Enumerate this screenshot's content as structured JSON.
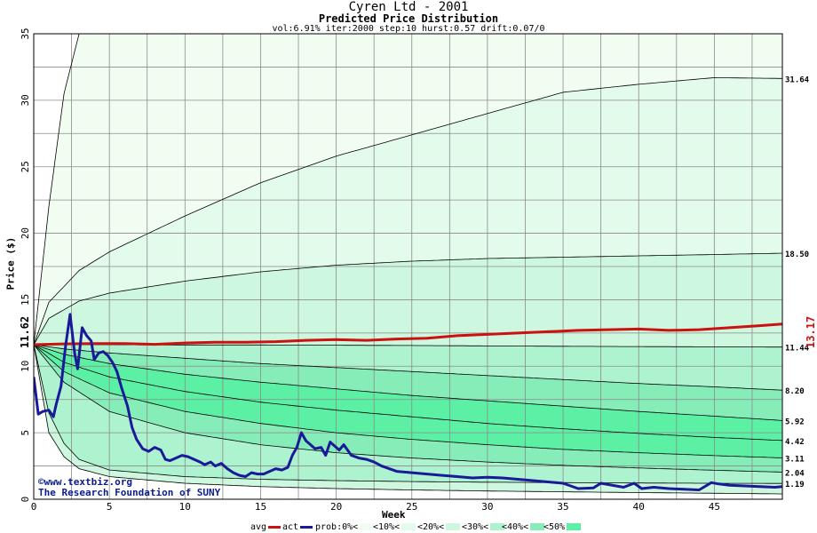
{
  "header": {
    "title": "Cyren Ltd - 2001",
    "subtitle": "Predicted Price Distribution",
    "params": "vol:6.91% iter:2000 step:10 hurst:0.57 drift:0.07/0"
  },
  "credits": {
    "line1": "©www.textbiz.org",
    "line2": "The Research Foundation of SUNY"
  },
  "legend": {
    "avg": "avg",
    "act": "act",
    "prob0": "prob:0%<",
    "p10": "<10%<",
    "p20": "<20%<",
    "p30": "<30%<",
    "p40": "<40%<",
    "p50": "<50%"
  },
  "colors": {
    "avg": "#cc1111",
    "act": "#1a1a99",
    "band0": "#f2fdf2",
    "band1": "#e2fbea",
    "band2": "#cdf7df",
    "band3": "#aef3cf",
    "band4": "#86edb9",
    "band5": "#5cf0a4"
  },
  "chart_data": {
    "type": "line",
    "xlabel": "Week",
    "ylabel": "Price ($)",
    "xlim": [
      0,
      49.5
    ],
    "ylim": [
      0,
      35
    ],
    "xticks": [
      0,
      5,
      10,
      15,
      20,
      25,
      30,
      35,
      40,
      45
    ],
    "yticks": [
      0,
      5,
      10,
      15,
      20,
      25,
      30,
      35
    ],
    "start_value": "11.62",
    "end_value": "13.17",
    "quantile_labels": [
      "31.64",
      "18.50",
      "11.44",
      "8.20",
      "5.92",
      "4.42",
      "3.11",
      "2.04",
      "1.19"
    ],
    "quantile_curves": [
      {
        "x": [
          0,
          1,
          2,
          3
        ],
        "y": [
          11.62,
          22,
          30.5,
          35
        ]
      },
      {
        "x": [
          0,
          1,
          3,
          5,
          10,
          15,
          20,
          25,
          30,
          35,
          40,
          45,
          49.5
        ],
        "y": [
          11.62,
          14.8,
          17.2,
          18.6,
          21.3,
          23.8,
          25.8,
          27.4,
          29,
          30.6,
          31.2,
          31.7,
          31.64
        ]
      },
      {
        "x": [
          0,
          1,
          3,
          5,
          10,
          15,
          20,
          25,
          30,
          35,
          40,
          45,
          49.5
        ],
        "y": [
          11.62,
          13.6,
          14.9,
          15.5,
          16.4,
          17.1,
          17.6,
          17.9,
          18.1,
          18.2,
          18.3,
          18.4,
          18.5
        ]
      },
      {
        "x": [
          0,
          5,
          10,
          15,
          20,
          25,
          30,
          35,
          40,
          45,
          49.5
        ],
        "y": [
          11.62,
          11.62,
          11.6,
          11.6,
          11.58,
          11.56,
          11.53,
          11.5,
          11.48,
          11.46,
          11.44
        ]
      },
      {
        "x": [
          0,
          2,
          5,
          10,
          15,
          20,
          25,
          30,
          35,
          40,
          45,
          49.5
        ],
        "y": [
          11.62,
          11.3,
          11.0,
          10.6,
          10.2,
          9.9,
          9.6,
          9.3,
          9.0,
          8.7,
          8.45,
          8.2
        ]
      },
      {
        "x": [
          0,
          2,
          5,
          10,
          15,
          20,
          25,
          30,
          35,
          40,
          45,
          49.5
        ],
        "y": [
          11.62,
          10.9,
          10.2,
          9.4,
          8.8,
          8.3,
          7.8,
          7.4,
          7.0,
          6.6,
          6.25,
          5.92
        ]
      },
      {
        "x": [
          0,
          2,
          5,
          10,
          15,
          20,
          25,
          30,
          35,
          40,
          45,
          49.5
        ],
        "y": [
          11.62,
          10.3,
          9.2,
          8.1,
          7.3,
          6.7,
          6.2,
          5.7,
          5.3,
          4.95,
          4.65,
          4.42
        ]
      },
      {
        "x": [
          0,
          2,
          5,
          10,
          15,
          20,
          25,
          30,
          35,
          40,
          45,
          49.5
        ],
        "y": [
          11.62,
          9.6,
          8.0,
          6.6,
          5.7,
          5.0,
          4.5,
          4.1,
          3.75,
          3.5,
          3.28,
          3.11
        ]
      },
      {
        "x": [
          0,
          2,
          5,
          10,
          15,
          20,
          25,
          30,
          35,
          40,
          45,
          49.5
        ],
        "y": [
          11.62,
          8.8,
          6.6,
          5.0,
          4.1,
          3.5,
          3.1,
          2.8,
          2.55,
          2.35,
          2.18,
          2.04
        ]
      },
      {
        "x": [
          0,
          1,
          2,
          3,
          5,
          10,
          15,
          20,
          25,
          30,
          35,
          40,
          45,
          49.5
        ],
        "y": [
          11.62,
          6.5,
          4.2,
          3.0,
          2.2,
          1.7,
          1.5,
          1.4,
          1.33,
          1.28,
          1.25,
          1.22,
          1.2,
          1.19
        ]
      },
      {
        "x": [
          0,
          1,
          2,
          3,
          5,
          10,
          15,
          20,
          25,
          30,
          35,
          40,
          45,
          49.5
        ],
        "y": [
          11.62,
          5.0,
          3.2,
          2.3,
          1.7,
          1.2,
          0.95,
          0.8,
          0.7,
          0.62,
          0.56,
          0.5,
          0.45,
          0.4
        ]
      }
    ],
    "series": [
      {
        "name": "avg",
        "x": [
          0,
          2,
          4,
          6,
          8,
          10,
          12,
          14,
          16,
          18,
          20,
          22,
          24,
          26,
          28,
          30,
          32,
          34,
          36,
          38,
          40,
          42,
          44,
          46,
          48,
          49.5
        ],
        "y": [
          11.62,
          11.68,
          11.7,
          11.7,
          11.65,
          11.75,
          11.8,
          11.8,
          11.85,
          11.95,
          12.0,
          11.95,
          12.05,
          12.1,
          12.3,
          12.4,
          12.5,
          12.6,
          12.7,
          12.75,
          12.8,
          12.7,
          12.75,
          12.9,
          13.05,
          13.17
        ]
      },
      {
        "name": "act",
        "x": [
          0,
          0.3,
          0.6,
          1.0,
          1.3,
          1.5,
          1.8,
          2.1,
          2.4,
          2.7,
          2.9,
          3.2,
          3.5,
          3.8,
          4.0,
          4.3,
          4.6,
          4.9,
          5.2,
          5.5,
          5.8,
          6.2,
          6.5,
          6.8,
          7.2,
          7.6,
          8.0,
          8.4,
          8.7,
          9.0,
          9.4,
          9.8,
          10.2,
          10.6,
          11.0,
          11.3,
          11.7,
          12.0,
          12.4,
          12.8,
          13.2,
          13.6,
          14.0,
          14.4,
          14.8,
          15.2,
          15.6,
          16.0,
          16.4,
          16.8,
          17.1,
          17.4,
          17.7,
          18.0,
          18.3,
          18.6,
          19.0,
          19.3,
          19.6,
          19.9,
          20.2,
          20.5,
          21.0,
          21.5,
          22.0,
          22.5,
          23.0,
          24.0,
          25.0,
          26.0,
          27.0,
          28.0,
          29.0,
          30.0,
          31.0,
          32.0,
          33.0,
          34.0,
          35.0,
          36.0,
          37.0,
          37.5,
          38.0,
          39.0,
          39.7,
          40.2,
          41.0,
          42.0,
          43.0,
          44.0,
          44.8,
          45.3,
          46.0,
          47.0,
          48.0,
          49.0,
          49.5
        ],
        "y": [
          9.2,
          6.4,
          6.6,
          6.7,
          6.2,
          7.2,
          8.5,
          11.5,
          13.9,
          11.0,
          9.8,
          12.9,
          12.3,
          11.9,
          10.5,
          11.0,
          11.1,
          10.8,
          10.3,
          9.6,
          8.4,
          7.0,
          5.4,
          4.5,
          3.8,
          3.6,
          3.9,
          3.7,
          3.0,
          2.9,
          3.1,
          3.3,
          3.2,
          3.0,
          2.8,
          2.6,
          2.8,
          2.5,
          2.7,
          2.3,
          2.0,
          1.8,
          1.7,
          2.0,
          1.9,
          1.9,
          2.1,
          2.3,
          2.2,
          2.4,
          3.3,
          3.9,
          5.0,
          4.4,
          4.1,
          3.8,
          3.9,
          3.3,
          4.3,
          4.0,
          3.7,
          4.1,
          3.3,
          3.1,
          3.0,
          2.8,
          2.5,
          2.1,
          2.0,
          1.9,
          1.8,
          1.7,
          1.6,
          1.65,
          1.6,
          1.5,
          1.4,
          1.3,
          1.2,
          0.8,
          0.85,
          1.2,
          1.1,
          0.9,
          1.2,
          0.8,
          0.9,
          0.8,
          0.75,
          0.7,
          1.25,
          1.15,
          1.05,
          1.0,
          0.95,
          0.9,
          0.95
        ]
      }
    ]
  }
}
